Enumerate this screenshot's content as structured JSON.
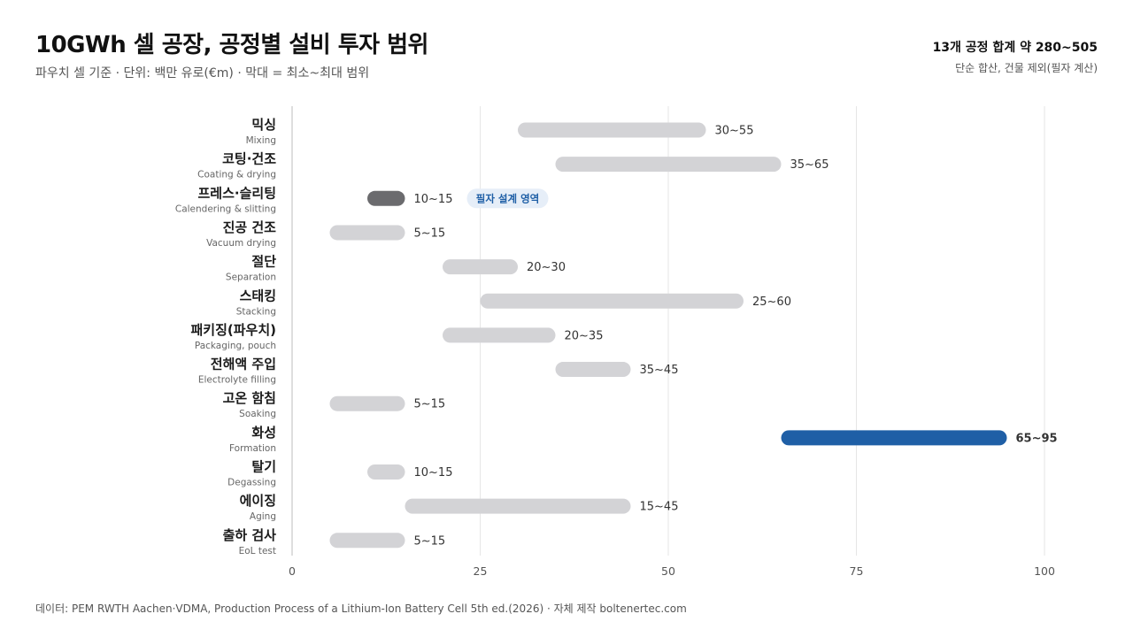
{
  "title": "10GWh 셀 공장, 공정별 설비 투자 범위",
  "subtitle": "파우치 셀 기준 · 단위: 백만 유로(€m) · 막대 = 최소~최대 범위",
  "summary": "13개 공정 합계 약 280~505",
  "summary_note": "단순 합산, 건물 제외(필자 계산)",
  "source": "데이터: PEM RWTH Aachen·VDMA, Production Process of a Lithium-Ion Battery Cell 5th ed.(2026) · 자체 제작 boltenertec.com",
  "colors": {
    "default_bar": "#d3d3d6",
    "authored_bar": "#6b6b6e",
    "highlight_bar": "#1f5fa6",
    "highlight_text": "#1f5fa6",
    "badge_bg": "#e6eef8",
    "badge_text": "#1f5fa6",
    "grid": "#e6e6e6",
    "axis": "#bdbdbd"
  },
  "chart_data": {
    "type": "range_bar",
    "orientation": "horizontal",
    "xlim": [
      0,
      100
    ],
    "xticks": [
      0,
      25,
      50,
      75,
      100
    ],
    "grid": true,
    "categories": [
      {
        "ko": "믹싱",
        "en": "Mixing",
        "min": 30,
        "max": 55,
        "label": "30~55",
        "style": "default"
      },
      {
        "ko": "코팅·건조",
        "en": "Coating & drying",
        "min": 35,
        "max": 65,
        "label": "35~65",
        "style": "default"
      },
      {
        "ko": "프레스·슬리팅",
        "en": "Calendering & slitting",
        "min": 10,
        "max": 15,
        "label": "10~15",
        "style": "authored",
        "badge": "필자 설계 영역"
      },
      {
        "ko": "진공 건조",
        "en": "Vacuum drying",
        "min": 5,
        "max": 15,
        "label": "5~15",
        "style": "default"
      },
      {
        "ko": "절단",
        "en": "Separation",
        "min": 20,
        "max": 30,
        "label": "20~30",
        "style": "default"
      },
      {
        "ko": "스태킹",
        "en": "Stacking",
        "min": 25,
        "max": 60,
        "label": "25~60",
        "style": "default"
      },
      {
        "ko": "패키징(파우치)",
        "en": "Packaging, pouch",
        "min": 20,
        "max": 35,
        "label": "20~35",
        "style": "default"
      },
      {
        "ko": "전해액 주입",
        "en": "Electrolyte filling",
        "min": 35,
        "max": 45,
        "label": "35~45",
        "style": "default"
      },
      {
        "ko": "고온 함침",
        "en": "Soaking",
        "min": 5,
        "max": 15,
        "label": "5~15",
        "style": "default"
      },
      {
        "ko": "화성",
        "en": "Formation",
        "min": 65,
        "max": 95,
        "label": "65~95",
        "style": "highlight"
      },
      {
        "ko": "탈기",
        "en": "Degassing",
        "min": 10,
        "max": 15,
        "label": "10~15",
        "style": "default"
      },
      {
        "ko": "에이징",
        "en": "Aging",
        "min": 15,
        "max": 45,
        "label": "15~45",
        "style": "default"
      },
      {
        "ko": "출하 검사",
        "en": "EoL test",
        "min": 5,
        "max": 15,
        "label": "5~15",
        "style": "default"
      }
    ]
  }
}
